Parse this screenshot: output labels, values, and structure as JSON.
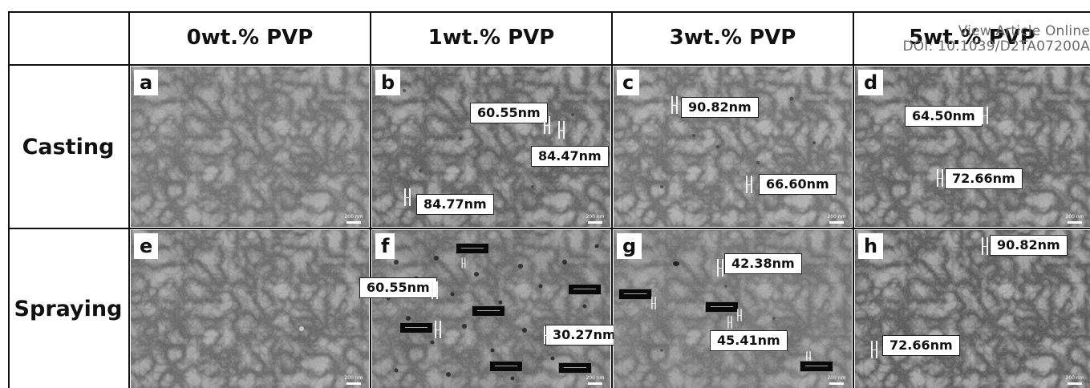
{
  "columns": [
    "0wt.% PVP",
    "1wt.% PVP",
    "3wt.% PVP",
    "5wt.% PVP"
  ],
  "rows": [
    "Casting",
    "Spraying"
  ],
  "watermark": {
    "line1": "View Article Online",
    "line2": "DOI: 10.1039/D2TA07200A"
  },
  "panels": {
    "a": {
      "label": "a",
      "scale": "200 nm"
    },
    "b": {
      "label": "b",
      "scale": "200 nm",
      "m1": "60.55nm",
      "m2": "84.47nm",
      "m3": "84.77nm"
    },
    "c": {
      "label": "c",
      "scale": "200 nm",
      "m1": "90.82nm",
      "m2": "66.60nm"
    },
    "d": {
      "label": "d",
      "scale": "200 nm",
      "m1": "64.50nm",
      "m2": "72.66nm"
    },
    "e": {
      "label": "e",
      "scale": "200 nm"
    },
    "f": {
      "label": "f",
      "scale": "200 nm",
      "m1": "60.55nm",
      "m2": "30.27nm"
    },
    "g": {
      "label": "g",
      "scale": "200 nm",
      "m1": "42.38nm",
      "m2": "45.41nm"
    },
    "h": {
      "label": "h",
      "scale": "200 nm",
      "m1": "90.82nm",
      "m2": "72.66nm"
    }
  },
  "colors": {
    "sem_gray": "#8c8c8c",
    "border": "#111111",
    "label_bg": "#ffffff"
  }
}
